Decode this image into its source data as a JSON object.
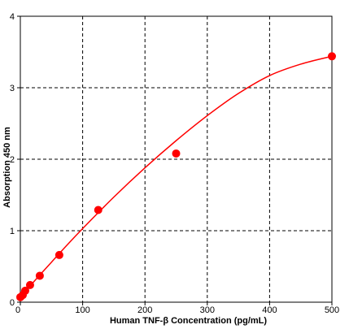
{
  "chart_data": {
    "type": "scatter",
    "title": "",
    "xlabel": "Human TNF-β  Concentration (pg/mL)",
    "ylabel": "Absorption 450 nm",
    "xlim": [
      0,
      500
    ],
    "ylim": [
      0,
      4
    ],
    "xticks": [
      "0",
      "100",
      "200",
      "300",
      "400",
      "500"
    ],
    "yticks": [
      "0",
      "1",
      "2",
      "3",
      "4"
    ],
    "grid": true,
    "grid_style": "dashed",
    "legend": "none",
    "series": [
      {
        "points": [
          {
            "x": 0,
            "y": 0.07
          },
          {
            "x": 3.9,
            "y": 0.1
          },
          {
            "x": 7.8,
            "y": 0.16
          },
          {
            "x": 15.6,
            "y": 0.24
          },
          {
            "x": 31.2,
            "y": 0.37
          },
          {
            "x": 62.5,
            "y": 0.66
          },
          {
            "x": 125,
            "y": 1.29
          },
          {
            "x": 250,
            "y": 2.08
          },
          {
            "x": 500,
            "y": 3.44
          }
        ],
        "fit_curve": {
          "x": [
            0,
            25,
            50,
            75,
            100,
            150,
            200,
            250,
            300,
            350,
            400,
            450,
            500
          ],
          "y": [
            0.07,
            0.32,
            0.56,
            0.8,
            1.03,
            1.47,
            1.88,
            2.26,
            2.61,
            2.92,
            3.17,
            3.33,
            3.44
          ]
        },
        "color": "#ff0000"
      }
    ]
  }
}
